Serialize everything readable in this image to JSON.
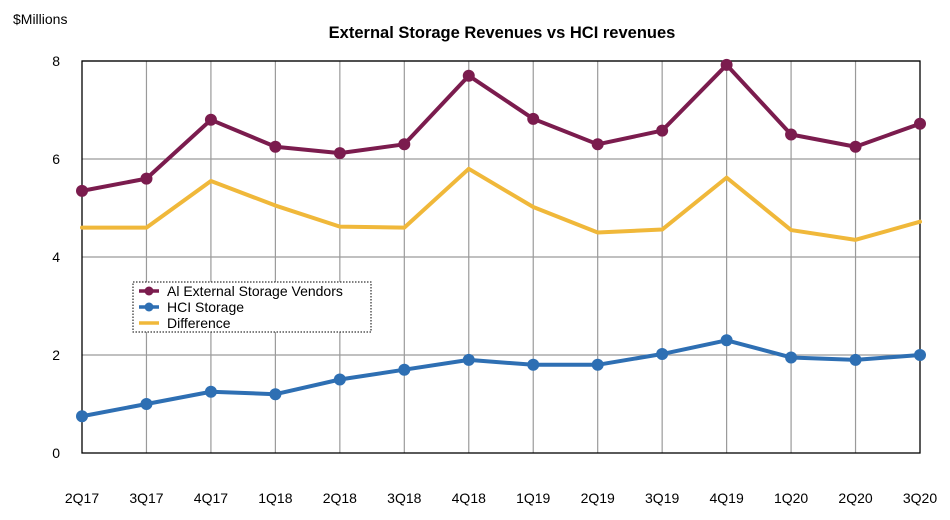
{
  "chart_data": {
    "type": "line",
    "title": "External Storage Revenues vs HCI revenues",
    "ylabel": "$Millions",
    "xlabel": "",
    "ylim": [
      0,
      8
    ],
    "yticks": [
      0,
      2,
      4,
      6,
      8
    ],
    "grid": true,
    "legend_position": "left-middle",
    "categories": [
      "2Q17",
      "3Q17",
      "4Q17",
      "1Q18",
      "2Q18",
      "3Q18",
      "4Q18",
      "1Q19",
      "2Q19",
      "3Q19",
      "4Q19",
      "1Q20",
      "2Q20",
      "3Q20"
    ],
    "series": [
      {
        "name": "Al External Storage Vendors",
        "color": "#7b1c4e",
        "markers": true,
        "values": [
          5.35,
          5.6,
          6.8,
          6.25,
          6.12,
          6.3,
          7.7,
          6.82,
          6.3,
          6.58,
          7.92,
          6.5,
          6.25,
          6.72
        ]
      },
      {
        "name": "HCI Storage",
        "color": "#2e6fb3",
        "markers": true,
        "values": [
          0.75,
          1.0,
          1.25,
          1.2,
          1.5,
          1.7,
          1.9,
          1.8,
          1.8,
          2.02,
          2.3,
          1.95,
          1.9,
          2.0
        ]
      },
      {
        "name": "Difference",
        "color": "#f0b83a",
        "markers": false,
        "values": [
          4.6,
          4.6,
          5.55,
          5.05,
          4.62,
          4.6,
          5.8,
          5.02,
          4.5,
          4.56,
          5.62,
          4.55,
          4.35,
          4.72
        ]
      }
    ]
  }
}
